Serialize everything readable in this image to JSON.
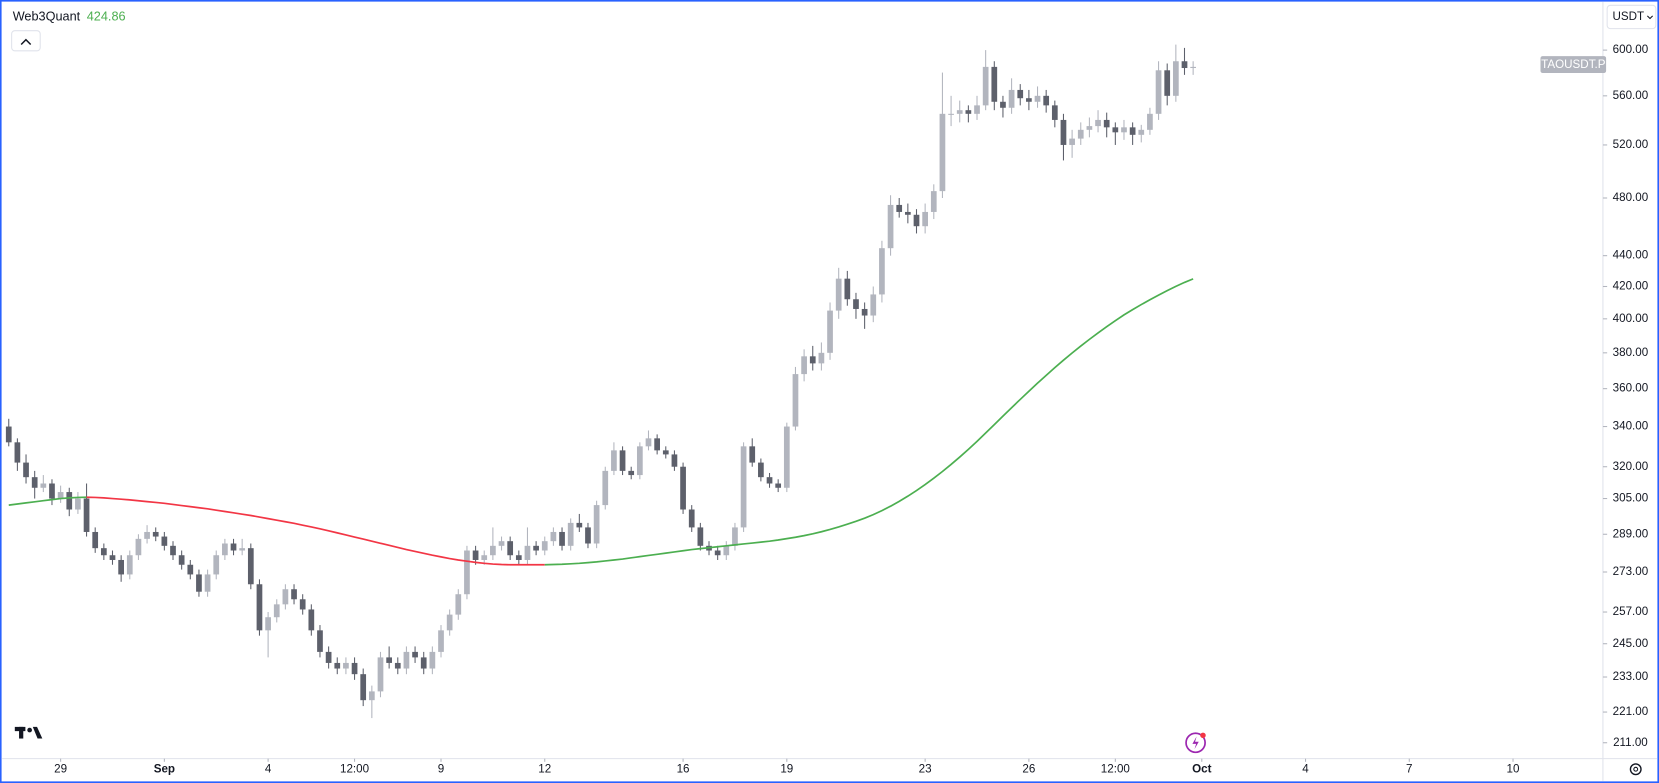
{
  "chart_data": {
    "type": "candlestick",
    "symbol": "TAOUSDT.P",
    "currency": "USDT",
    "log_scale": true,
    "up_color": "#b2b5be",
    "down_color": "#5d606b",
    "x": [
      -1.5,
      -1.25,
      -1,
      -0.75,
      -0.5,
      -0.25,
      0,
      0.25,
      0.5,
      0.75,
      1,
      1.25,
      1.5,
      1.75,
      2,
      2.25,
      2.5,
      2.75,
      3,
      3.25,
      3.5,
      3.75,
      4,
      4.25,
      4.5,
      4.75,
      5,
      5.25,
      5.5,
      5.75,
      6,
      6.25,
      6.5,
      6.75,
      7,
      7.25,
      7.5,
      7.75,
      8,
      8.25,
      8.5,
      8.75,
      9,
      9.25,
      9.5,
      9.75,
      10,
      10.25,
      10.5,
      10.75,
      11,
      11.25,
      11.5,
      11.75,
      12,
      12.25,
      12.5,
      12.75,
      13,
      13.25,
      13.5,
      13.75,
      14,
      14.25,
      14.5,
      14.75,
      15,
      15.25,
      15.5,
      15.75,
      16,
      16.25,
      16.5,
      16.75,
      17,
      17.25,
      17.5,
      17.75,
      18,
      18.25,
      18.5,
      18.75,
      19,
      19.25,
      19.5,
      19.75,
      20,
      20.25,
      20.5,
      20.75,
      21,
      21.25,
      21.5,
      21.75,
      22,
      22.25,
      22.5,
      22.75,
      23,
      23.25,
      23.5,
      23.75,
      24,
      24.25,
      24.5,
      24.75,
      25,
      25.25,
      25.5,
      25.75,
      26,
      26.25,
      26.5,
      26.75,
      27,
      27.25,
      27.5,
      27.75,
      28,
      28.25,
      28.5,
      28.75,
      29,
      29.25,
      29.5,
      29.75,
      30,
      30.25,
      30.5,
      30.75,
      31,
      31.25,
      31.5,
      31.75,
      32,
      32.25,
      32.5,
      32.75
    ],
    "candles": [
      [
        340,
        344,
        330,
        332
      ],
      [
        332,
        334,
        318,
        322
      ],
      [
        322,
        326,
        312,
        315
      ],
      [
        315,
        318,
        305,
        310
      ],
      [
        310,
        316,
        308,
        312
      ],
      [
        312,
        314,
        302,
        305
      ],
      [
        305,
        311,
        303,
        308
      ],
      [
        308,
        310,
        297,
        300
      ],
      [
        300,
        308,
        298,
        305
      ],
      [
        305,
        312,
        288,
        290
      ],
      [
        290,
        292,
        281,
        283
      ],
      [
        283,
        285,
        278,
        280
      ],
      [
        280,
        282,
        276,
        278
      ],
      [
        278,
        280,
        269,
        272
      ],
      [
        272,
        282,
        270,
        280
      ],
      [
        280,
        289,
        278,
        287
      ],
      [
        287,
        293,
        285,
        290
      ],
      [
        290,
        292,
        286,
        288
      ],
      [
        288,
        290,
        282,
        284
      ],
      [
        284,
        286,
        278,
        280
      ],
      [
        280,
        282,
        274,
        276
      ],
      [
        276,
        278,
        270,
        272
      ],
      [
        272,
        274,
        263,
        265
      ],
      [
        265,
        274,
        263,
        272
      ],
      [
        272,
        282,
        270,
        280
      ],
      [
        280,
        287,
        278,
        285
      ],
      [
        285,
        287,
        280,
        282
      ],
      [
        282,
        287,
        280,
        283
      ],
      [
        283,
        285,
        266,
        268
      ],
      [
        268,
        270,
        248,
        250
      ],
      [
        250,
        257,
        240,
        255
      ],
      [
        255,
        262,
        253,
        260
      ],
      [
        260,
        268,
        258,
        266
      ],
      [
        266,
        268,
        260,
        262
      ],
      [
        262,
        264,
        256,
        258
      ],
      [
        258,
        260,
        248,
        250
      ],
      [
        250,
        252,
        240,
        242
      ],
      [
        242,
        244,
        236,
        238
      ],
      [
        238,
        240,
        234,
        236
      ],
      [
        236,
        240,
        234,
        238
      ],
      [
        238,
        240,
        232,
        234
      ],
      [
        234,
        236,
        223,
        225
      ],
      [
        225,
        230,
        219,
        228
      ],
      [
        228,
        242,
        226,
        240
      ],
      [
        240,
        244,
        236,
        238
      ],
      [
        238,
        240,
        234,
        236
      ],
      [
        236,
        244,
        234,
        242
      ],
      [
        242,
        244,
        238,
        240
      ],
      [
        240,
        242,
        234,
        236
      ],
      [
        236,
        244,
        234,
        242
      ],
      [
        242,
        252,
        240,
        250
      ],
      [
        250,
        258,
        248,
        256
      ],
      [
        256,
        266,
        254,
        264
      ],
      [
        264,
        284,
        262,
        282
      ],
      [
        282,
        284,
        276,
        278
      ],
      [
        278,
        282,
        276,
        280
      ],
      [
        280,
        292,
        278,
        284
      ],
      [
        284,
        288,
        282,
        286
      ],
      [
        286,
        288,
        278,
        280
      ],
      [
        280,
        282,
        276,
        278
      ],
      [
        278,
        292,
        276,
        284
      ],
      [
        284,
        286,
        280,
        282
      ],
      [
        282,
        288,
        280,
        286
      ],
      [
        286,
        292,
        284,
        290
      ],
      [
        290,
        292,
        282,
        284
      ],
      [
        284,
        296,
        282,
        294
      ],
      [
        294,
        298,
        290,
        292
      ],
      [
        292,
        294,
        283,
        285
      ],
      [
        285,
        304,
        283,
        302
      ],
      [
        302,
        320,
        300,
        318
      ],
      [
        318,
        332,
        316,
        328
      ],
      [
        328,
        330,
        316,
        318
      ],
      [
        318,
        320,
        314,
        316
      ],
      [
        316,
        332,
        314,
        330
      ],
      [
        330,
        338,
        328,
        334
      ],
      [
        334,
        336,
        326,
        328
      ],
      [
        328,
        330,
        324,
        326
      ],
      [
        326,
        328,
        318,
        320
      ],
      [
        320,
        322,
        298,
        300
      ],
      [
        300,
        302,
        290,
        292
      ],
      [
        292,
        294,
        282,
        284
      ],
      [
        284,
        286,
        280,
        282
      ],
      [
        282,
        284,
        278,
        280
      ],
      [
        280,
        286,
        278,
        284
      ],
      [
        284,
        294,
        282,
        292
      ],
      [
        292,
        332,
        290,
        330
      ],
      [
        330,
        334,
        320,
        322
      ],
      [
        322,
        324,
        313,
        315
      ],
      [
        315,
        317,
        310,
        312
      ],
      [
        312,
        314,
        308,
        310
      ],
      [
        310,
        342,
        308,
        340
      ],
      [
        340,
        372,
        338,
        368
      ],
      [
        368,
        382,
        364,
        378
      ],
      [
        378,
        384,
        370,
        374
      ],
      [
        374,
        386,
        370,
        380
      ],
      [
        380,
        410,
        376,
        405
      ],
      [
        405,
        432,
        400,
        425
      ],
      [
        425,
        430,
        408,
        412
      ],
      [
        412,
        416,
        400,
        406
      ],
      [
        406,
        410,
        394,
        402
      ],
      [
        402,
        420,
        398,
        415
      ],
      [
        415,
        450,
        410,
        445
      ],
      [
        445,
        482,
        440,
        475
      ],
      [
        475,
        480,
        466,
        470
      ],
      [
        470,
        476,
        462,
        468
      ],
      [
        468,
        472,
        455,
        460
      ],
      [
        460,
        476,
        455,
        470
      ],
      [
        470,
        490,
        465,
        485
      ],
      [
        485,
        580,
        480,
        545
      ],
      [
        545,
        560,
        535,
        545
      ],
      [
        545,
        556,
        538,
        548
      ],
      [
        548,
        552,
        538,
        545
      ],
      [
        545,
        560,
        540,
        552
      ],
      [
        552,
        600,
        548,
        585
      ],
      [
        585,
        590,
        548,
        555
      ],
      [
        555,
        560,
        542,
        550
      ],
      [
        550,
        575,
        545,
        565
      ],
      [
        565,
        570,
        552,
        558
      ],
      [
        558,
        565,
        548,
        555
      ],
      [
        555,
        568,
        550,
        560
      ],
      [
        560,
        565,
        546,
        552
      ],
      [
        552,
        556,
        534,
        540
      ],
      [
        540,
        545,
        508,
        520
      ],
      [
        520,
        532,
        510,
        525
      ],
      [
        525,
        538,
        520,
        532
      ],
      [
        532,
        542,
        526,
        535
      ],
      [
        535,
        548,
        530,
        540
      ],
      [
        540,
        546,
        526,
        534
      ],
      [
        534,
        538,
        520,
        530
      ],
      [
        530,
        540,
        524,
        534
      ],
      [
        534,
        538,
        520,
        528
      ],
      [
        528,
        536,
        522,
        532
      ],
      [
        532,
        550,
        528,
        545
      ],
      [
        545,
        590,
        540,
        582
      ],
      [
        582,
        588,
        552,
        560
      ],
      [
        560,
        605,
        555,
        590
      ],
      [
        590,
        602,
        578,
        584
      ],
      [
        584,
        590,
        578,
        585
      ]
    ],
    "ma": {
      "name": "Web3Quant",
      "up_color": "#4caf50",
      "down_color": "#f23645",
      "values": [
        302,
        302.5,
        303,
        303.5,
        304,
        304.5,
        305,
        305.3,
        305.5,
        305.6,
        305.5,
        305.3,
        305,
        304.7,
        304.4,
        304,
        303.6,
        303.2,
        302.8,
        302.3,
        301.8,
        301.3,
        300.8,
        300.3,
        299.7,
        299.1,
        298.5,
        297.9,
        297.3,
        296.6,
        295.9,
        295.2,
        294.5,
        293.8,
        293,
        292.2,
        291.4,
        290.5,
        289.6,
        288.7,
        287.8,
        286.9,
        286,
        285.1,
        284.2,
        283.3,
        282.4,
        281.6,
        280.8,
        280,
        279.3,
        278.6,
        278,
        277.5,
        277,
        276.6,
        276.3,
        276.1,
        276,
        276,
        276,
        276,
        276,
        276.1,
        276.2,
        276.4,
        276.6,
        276.9,
        277.2,
        277.6,
        278,
        278.4,
        278.9,
        279.4,
        279.9,
        280.4,
        280.9,
        281.4,
        281.9,
        282.4,
        282.8,
        283.2,
        283.6,
        284,
        284.4,
        284.8,
        285.2,
        285.6,
        286,
        286.5,
        287.1,
        287.7,
        288.4,
        289.2,
        290.1,
        291.1,
        292.2,
        293.4,
        294.7,
        296.1,
        297.7,
        299.5,
        301.5,
        303.7,
        306.1,
        308.7,
        311.5,
        314.5,
        317.7,
        321.1,
        324.7,
        328.5,
        332.5,
        336.7,
        341,
        345.4,
        349.8,
        354.2,
        358.6,
        363,
        367.3,
        371.6,
        375.8,
        379.9,
        383.9,
        387.8,
        391.6,
        395.3,
        398.9,
        402.4,
        405.6,
        408.7,
        411.7,
        414.6,
        417.4,
        420.1,
        422.6,
        424.86
      ]
    },
    "xlim": [
      -1.6,
      44.6
    ],
    "xticks": [
      {
        "value": 0,
        "label": "29"
      },
      {
        "value": 3,
        "label": "Sep"
      },
      {
        "value": 6,
        "label": "4"
      },
      {
        "value": 8.5,
        "label": "12:00"
      },
      {
        "value": 11,
        "label": "9"
      },
      {
        "value": 14,
        "label": "12"
      },
      {
        "value": 18,
        "label": "16"
      },
      {
        "value": 21,
        "label": "19"
      },
      {
        "value": 25,
        "label": "23"
      },
      {
        "value": 28,
        "label": "26"
      },
      {
        "value": 30.5,
        "label": "12:00"
      },
      {
        "value": 33,
        "label": "Oct"
      },
      {
        "value": 36,
        "label": "4"
      },
      {
        "value": 39,
        "label": "7"
      },
      {
        "value": 42,
        "label": "10"
      }
    ],
    "ylim": [
      206,
      644
    ],
    "yticks": [
      {
        "value": 600,
        "label": "600.00"
      },
      {
        "value": 560,
        "label": "560.00"
      },
      {
        "value": 520,
        "label": "520.00"
      },
      {
        "value": 480,
        "label": "480.00"
      },
      {
        "value": 440,
        "label": "440.00"
      },
      {
        "value": 420,
        "label": "420.00"
      },
      {
        "value": 400,
        "label": "400.00"
      },
      {
        "value": 380,
        "label": "380.00"
      },
      {
        "value": 360,
        "label": "360.00"
      },
      {
        "value": 340,
        "label": "340.00"
      },
      {
        "value": 320,
        "label": "320.00"
      },
      {
        "value": 305,
        "label": "305.00"
      },
      {
        "value": 289,
        "label": "289.00"
      },
      {
        "value": 273,
        "label": "273.00"
      },
      {
        "value": 257,
        "label": "257.00"
      },
      {
        "value": 245,
        "label": "245.00"
      },
      {
        "value": 233,
        "label": "233.00"
      },
      {
        "value": 221,
        "label": "221.00"
      },
      {
        "value": 211,
        "label": "211.00"
      }
    ]
  }
}
